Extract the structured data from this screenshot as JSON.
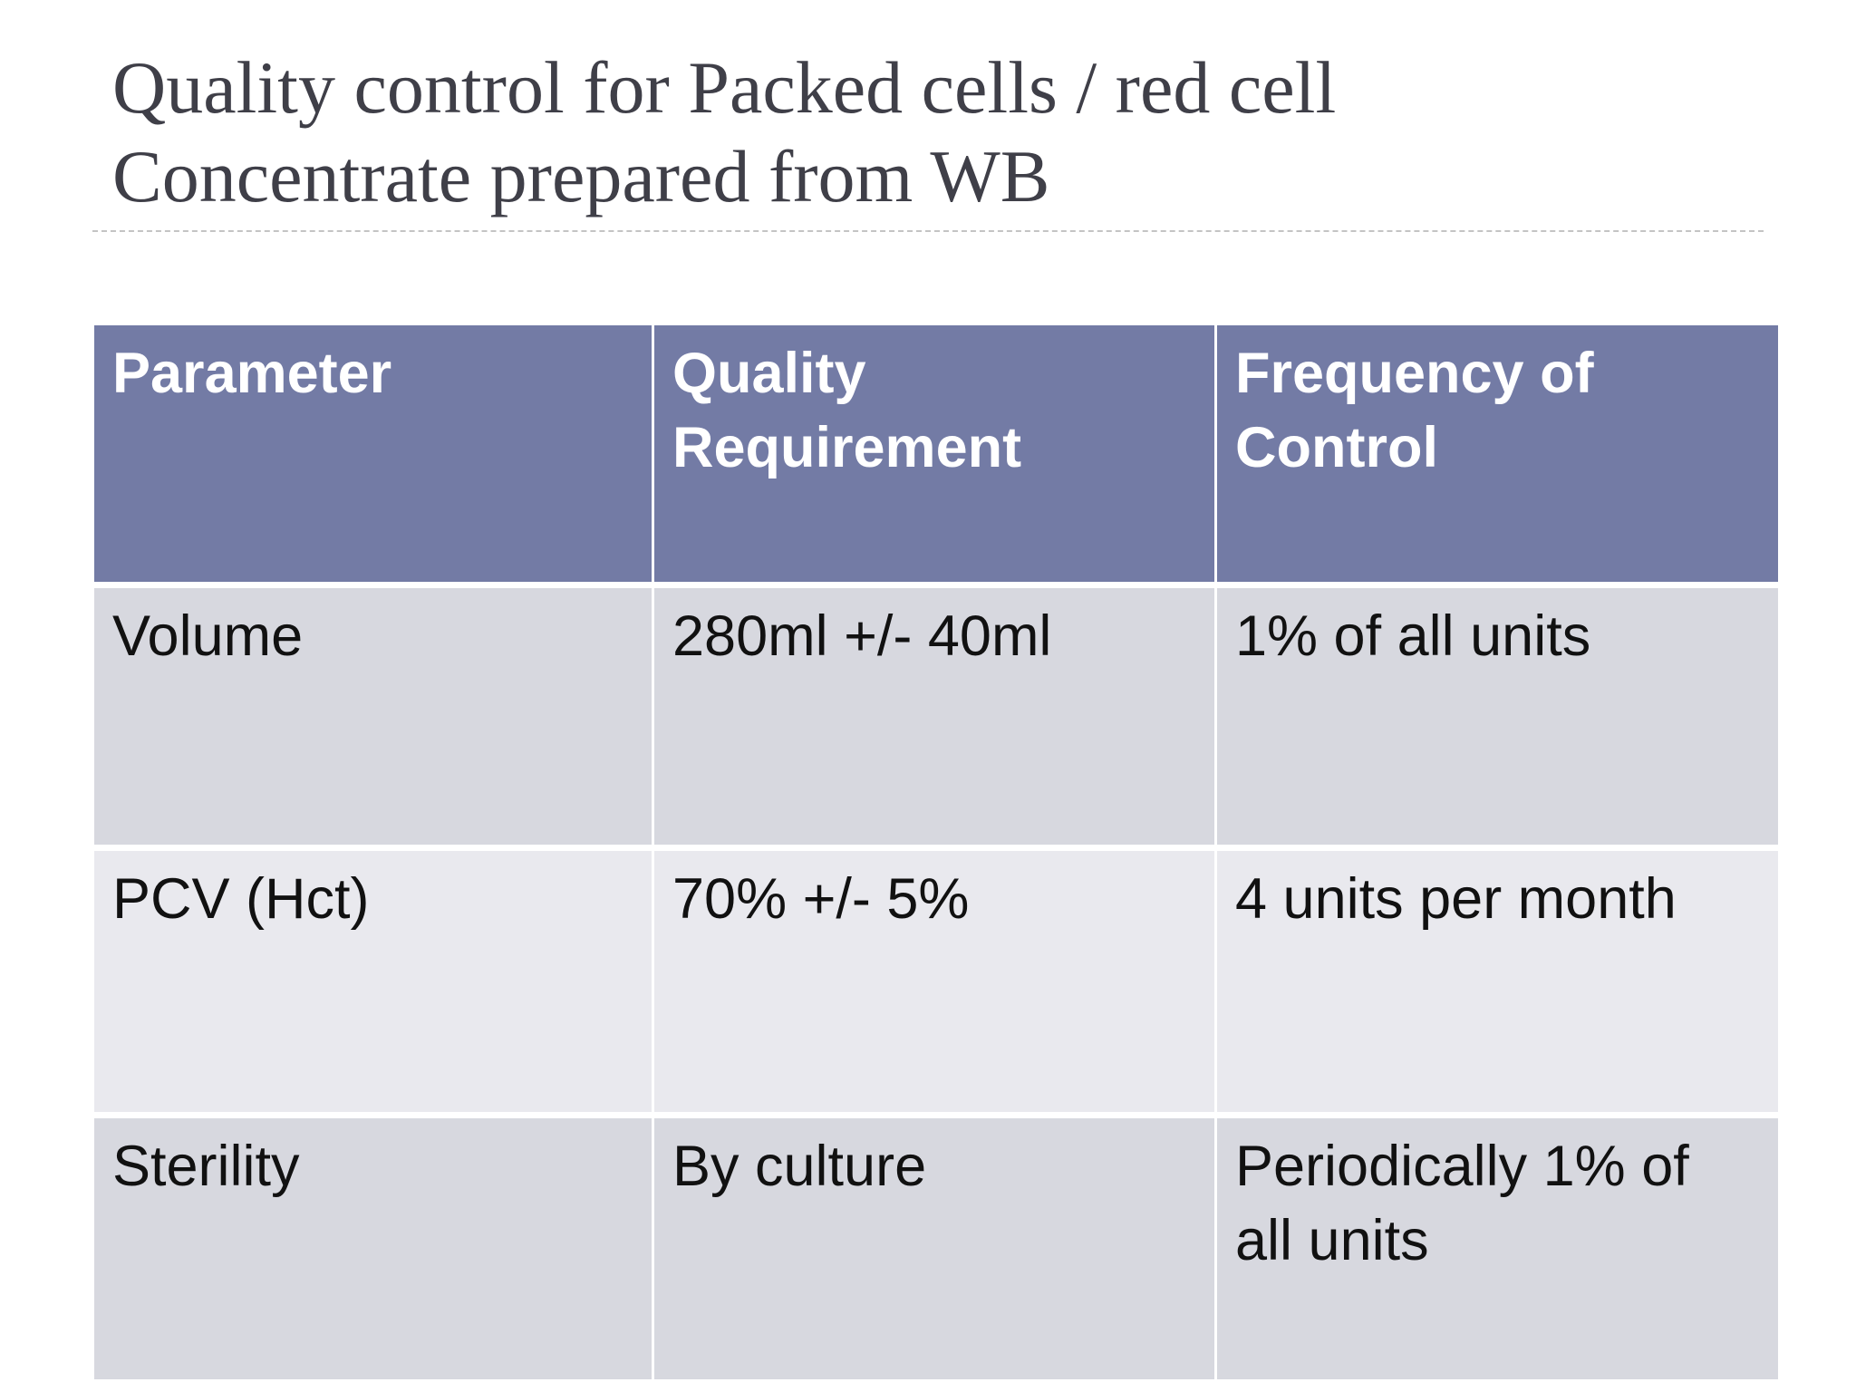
{
  "header": {
    "title": "Quality control for Packed cells / red cell Concentrate prepared from WB"
  },
  "table": {
    "columns": [
      "Parameter",
      "Quality Requirement",
      "Frequency of Control"
    ],
    "rows": [
      [
        "Volume",
        "280ml +/- 40ml",
        "1% of all units"
      ],
      [
        "PCV (Hct)",
        "70% +/- 5%",
        "4 units per month"
      ],
      [
        "Sterility",
        "By culture",
        "Periodically 1% of all units"
      ]
    ]
  }
}
